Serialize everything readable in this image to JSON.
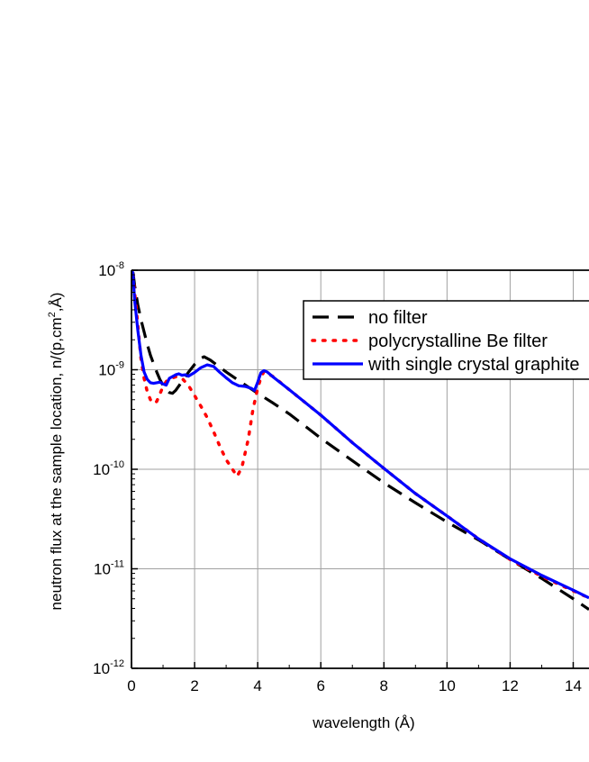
{
  "chart_data": {
    "type": "line",
    "title": "",
    "xlabel": "wavelength (Å)",
    "ylabel_parts": [
      "neutron flux at the sample location, n/(p,cm",
      "2",
      ",Å)"
    ],
    "xlim": [
      0,
      14.5
    ],
    "ylim": [
      1e-12,
      1e-08
    ],
    "yscale": "log",
    "grid": true,
    "legend_position": "top-right",
    "x_ticks": [
      {
        "value": 0,
        "label": "0"
      },
      {
        "value": 2,
        "label": "2"
      },
      {
        "value": 4,
        "label": "4"
      },
      {
        "value": 6,
        "label": "6"
      },
      {
        "value": 8,
        "label": "8"
      },
      {
        "value": 10,
        "label": "10"
      },
      {
        "value": 12,
        "label": "12"
      },
      {
        "value": 14,
        "label": "14"
      }
    ],
    "y_ticks": [
      {
        "value": 1e-08,
        "base": "10",
        "exp": "-8"
      },
      {
        "value": 1e-09,
        "base": "10",
        "exp": "-9"
      },
      {
        "value": 1e-10,
        "base": "10",
        "exp": "-10"
      },
      {
        "value": 1e-11,
        "base": "10",
        "exp": "-11"
      },
      {
        "value": 1e-12,
        "base": "10",
        "exp": "-12"
      }
    ],
    "series": [
      {
        "name": "no filter",
        "color": "#000000",
        "style": "dashed",
        "points": [
          [
            0.05,
            9.5e-09
          ],
          [
            0.1,
            7e-09
          ],
          [
            0.2,
            4.5e-09
          ],
          [
            0.3,
            3.2e-09
          ],
          [
            0.4,
            2.4e-09
          ],
          [
            0.5,
            1.8e-09
          ],
          [
            0.6,
            1.4e-09
          ],
          [
            0.7,
            1.15e-09
          ],
          [
            0.8,
            9.5e-10
          ],
          [
            0.9,
            8e-10
          ],
          [
            1.0,
            7e-10
          ],
          [
            1.1,
            6.3e-10
          ],
          [
            1.2,
            5.9e-10
          ],
          [
            1.3,
            5.8e-10
          ],
          [
            1.4,
            6.2e-10
          ],
          [
            1.6,
            7.6e-10
          ],
          [
            1.8,
            9.4e-10
          ],
          [
            2.0,
            1.13e-09
          ],
          [
            2.2,
            1.3e-09
          ],
          [
            2.3,
            1.35e-09
          ],
          [
            2.5,
            1.25e-09
          ],
          [
            3.0,
            9.5e-10
          ],
          [
            3.5,
            7.4e-10
          ],
          [
            4.0,
            5.8e-10
          ],
          [
            4.5,
            4.6e-10
          ],
          [
            5.0,
            3.6e-10
          ],
          [
            6.0,
            2.05e-10
          ],
          [
            7.0,
            1.22e-10
          ],
          [
            8.0,
            7.3e-11
          ],
          [
            9.0,
            4.6e-11
          ],
          [
            10.0,
            2.95e-11
          ],
          [
            11.0,
            1.95e-11
          ],
          [
            12.0,
            1.24e-11
          ],
          [
            13.0,
            8e-12
          ],
          [
            14.0,
            5e-12
          ],
          [
            14.5,
            3.9e-12
          ]
        ]
      },
      {
        "name": "polycrystalline Be filter",
        "color": "#ff0000",
        "style": "dotted",
        "points": [
          [
            0.05,
            9e-09
          ],
          [
            0.1,
            6e-09
          ],
          [
            0.2,
            2.8e-09
          ],
          [
            0.3,
            1.3e-09
          ],
          [
            0.4,
            8.2e-10
          ],
          [
            0.5,
            6e-10
          ],
          [
            0.6,
            5e-10
          ],
          [
            0.7,
            4.6e-10
          ],
          [
            0.8,
            4.8e-10
          ],
          [
            0.9,
            5.7e-10
          ],
          [
            1.0,
            6.8e-10
          ],
          [
            1.1,
            7.6e-10
          ],
          [
            1.2,
            8.1e-10
          ],
          [
            1.4,
            8.5e-10
          ],
          [
            1.6,
            8.2e-10
          ],
          [
            1.8,
            7e-10
          ],
          [
            2.0,
            5.5e-10
          ],
          [
            2.2,
            4.3e-10
          ],
          [
            2.4,
            3.3e-10
          ],
          [
            2.6,
            2.4e-10
          ],
          [
            2.8,
            1.7e-10
          ],
          [
            3.0,
            1.25e-10
          ],
          [
            3.2,
            1e-10
          ],
          [
            3.35,
            8.5e-11
          ],
          [
            3.5,
            1.05e-10
          ],
          [
            3.7,
            2e-10
          ],
          [
            3.85,
            4e-10
          ],
          [
            4.0,
            6.5e-10
          ],
          [
            4.1,
            8.3e-10
          ],
          [
            4.2,
            9.6e-10
          ],
          [
            4.5,
            8.5e-10
          ],
          [
            5.0,
            6.3e-10
          ],
          [
            6.0,
            3.5e-10
          ],
          [
            7.0,
            1.85e-10
          ],
          [
            8.0,
            1.02e-10
          ],
          [
            9.0,
            5.7e-11
          ],
          [
            10.0,
            3.4e-11
          ],
          [
            11.0,
            2e-11
          ],
          [
            12.0,
            1.24e-11
          ],
          [
            13.0,
            8.4e-12
          ],
          [
            14.0,
            6e-12
          ],
          [
            14.5,
            5.1e-12
          ]
        ]
      },
      {
        "name": "with single crystal graphite",
        "color": "#0000ff",
        "style": "solid",
        "points": [
          [
            0.02,
            1e-08
          ],
          [
            0.05,
            9e-09
          ],
          [
            0.1,
            5e-09
          ],
          [
            0.2,
            2.5e-09
          ],
          [
            0.3,
            1.4e-09
          ],
          [
            0.4,
            9.5e-10
          ],
          [
            0.5,
            8e-10
          ],
          [
            0.6,
            7.4e-10
          ],
          [
            0.7,
            7.3e-10
          ],
          [
            0.8,
            7.4e-10
          ],
          [
            0.9,
            7.5e-10
          ],
          [
            1.0,
            7.2e-10
          ],
          [
            1.1,
            7e-10
          ],
          [
            1.2,
            8.2e-10
          ],
          [
            1.4,
            8.9e-10
          ],
          [
            1.5,
            9.1e-10
          ],
          [
            1.6,
            8.8e-10
          ],
          [
            1.7,
            8.9e-10
          ],
          [
            1.8,
            8.6e-10
          ],
          [
            2.0,
            9.4e-10
          ],
          [
            2.2,
            1.05e-09
          ],
          [
            2.4,
            1.12e-09
          ],
          [
            2.6,
            1.08e-09
          ],
          [
            2.8,
            9.4e-10
          ],
          [
            3.0,
            8.3e-10
          ],
          [
            3.2,
            7.4e-10
          ],
          [
            3.4,
            6.9e-10
          ],
          [
            3.6,
            6.8e-10
          ],
          [
            3.8,
            6.5e-10
          ],
          [
            3.9,
            6.2e-10
          ],
          [
            4.0,
            7.5e-10
          ],
          [
            4.1,
            9.3e-10
          ],
          [
            4.2,
            9.8e-10
          ],
          [
            4.3,
            9.5e-10
          ],
          [
            4.5,
            8.4e-10
          ],
          [
            5.0,
            6.3e-10
          ],
          [
            6.0,
            3.5e-10
          ],
          [
            7.0,
            1.85e-10
          ],
          [
            8.0,
            1.02e-10
          ],
          [
            9.0,
            5.7e-11
          ],
          [
            10.0,
            3.4e-11
          ],
          [
            11.0,
            2e-11
          ],
          [
            12.0,
            1.26e-11
          ],
          [
            13.0,
            8.6e-12
          ],
          [
            14.0,
            6.1e-12
          ],
          [
            14.5,
            5.1e-12
          ]
        ]
      }
    ]
  }
}
